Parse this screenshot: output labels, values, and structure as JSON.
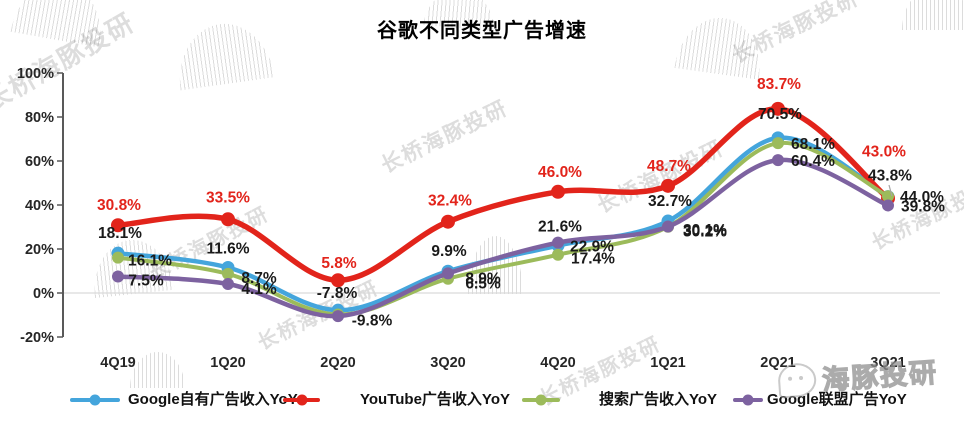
{
  "title": "谷歌不同类型广告增速",
  "watermark": {
    "diagonal_text": "长桥海豚投研",
    "logo_text": "海豚投研"
  },
  "colors": {
    "background": "#FFFFFF",
    "axis": "#595959",
    "gridline": "#D9D9D9",
    "label": "#1A1A1A"
  },
  "chart_data": {
    "type": "line",
    "title": "谷歌不同类型广告增速",
    "categories": [
      "4Q19",
      "1Q20",
      "2Q20",
      "3Q20",
      "4Q20",
      "1Q21",
      "2Q21",
      "3Q21"
    ],
    "y_axis": {
      "min": -20,
      "max": 100,
      "step": 20,
      "tick_labels": [
        "100%",
        "80%",
        "60%",
        "40%",
        "20%",
        "0%",
        "-20%"
      ]
    },
    "grid": "zero-line-only",
    "legend_position": "bottom",
    "line_style": "smooth",
    "series": [
      {
        "name": "Google自有广告收入YoY",
        "color": "#44A5DC",
        "label_color": "#1A1A1A",
        "values": [
          18.1,
          11.6,
          -7.8,
          9.9,
          21.6,
          32.7,
          70.5,
          43.8
        ],
        "labels": [
          "18.1%",
          "11.6%",
          "-7.8%",
          "9.9%",
          "21.6%",
          "32.7%",
          "70.5%",
          "43.8%"
        ],
        "label_dx": [
          2,
          0,
          -1,
          1,
          2,
          2,
          2,
          2
        ],
        "label_dy": [
          -20,
          -19,
          -17,
          -20,
          -19,
          -20,
          -24,
          -21
        ]
      },
      {
        "name": "YouTube广告收入YoY",
        "color": "#E2241B",
        "label_color": "#E2241B",
        "values": [
          30.8,
          33.5,
          5.8,
          32.4,
          46.0,
          48.7,
          83.7,
          43.0
        ],
        "labels": [
          "30.8%",
          "33.5%",
          "5.8%",
          "32.4%",
          "46.0%",
          "48.7%",
          "83.7%",
          "43.0%"
        ],
        "label_dx": [
          1,
          0,
          1,
          2,
          2,
          1,
          1,
          -4
        ],
        "label_dy": [
          -20,
          -22,
          -17,
          -21,
          -20,
          -20,
          -25,
          -47
        ]
      },
      {
        "name": "搜索广告收入YoY",
        "color": "#9CBB5B",
        "label_color": "#1A1A1A",
        "values": [
          16.1,
          8.7,
          -9.8,
          6.5,
          17.4,
          30.1,
          68.1,
          44.0
        ],
        "labels": [
          "16.1%",
          "8.7%",
          "-9.8%",
          "6.5%",
          "17.4%",
          "30.1%",
          "68.1%",
          "44.0%"
        ],
        "label_dx": [
          32,
          31,
          34,
          35,
          35,
          37,
          35,
          34
        ],
        "label_dy": [
          3,
          4,
          6,
          5,
          4,
          3,
          1,
          1
        ]
      },
      {
        "name": "Google联盟广告YoY",
        "color": "#7D62A0",
        "label_color": "#1A1A1A",
        "values": [
          7.5,
          4.1,
          -10.5,
          8.9,
          22.9,
          30.2,
          60.4,
          39.8
        ],
        "labels": [
          "7.5%",
          "4.1%",
          null,
          "8.9%",
          "22.9%",
          "30.2%",
          "60.4%",
          "39.8%"
        ],
        "label_dx": [
          28,
          31,
          null,
          35,
          34,
          37,
          35,
          35
        ],
        "label_dy": [
          4,
          5,
          null,
          5,
          4,
          5,
          1,
          1
        ]
      }
    ]
  }
}
